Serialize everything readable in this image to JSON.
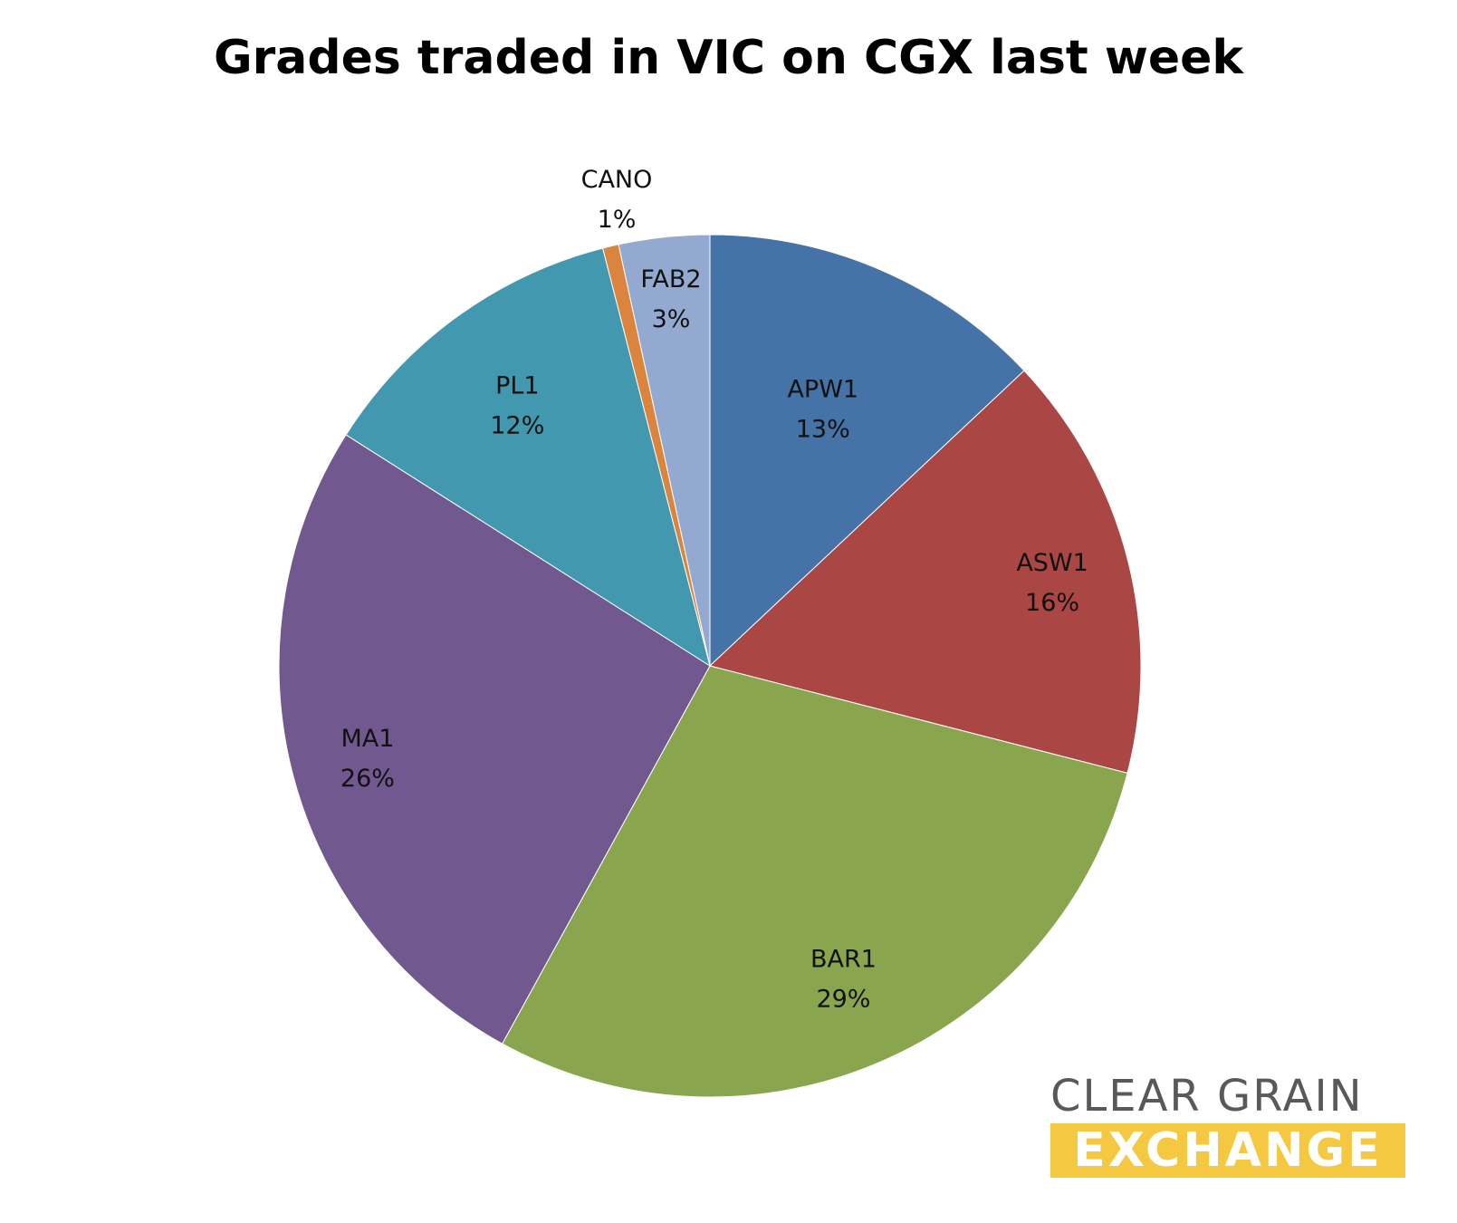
{
  "chart_data": {
    "type": "pie",
    "title": "Grades traded in VIC on CGX last week",
    "slices": [
      {
        "label": "APW1",
        "value": 13,
        "pct_label": "13%",
        "color": "#4572a7"
      },
      {
        "label": "ASW1",
        "value": 16,
        "pct_label": "16%",
        "color": "#aa4643"
      },
      {
        "label": "BAR1",
        "value": 29,
        "pct_label": "29%",
        "color": "#89a54e"
      },
      {
        "label": "MA1",
        "value": 26,
        "pct_label": "26%",
        "color": "#71588f"
      },
      {
        "label": "PL1",
        "value": 12,
        "pct_label": "12%",
        "color": "#4198af"
      },
      {
        "label": "CANO",
        "value": 0.6,
        "pct_label": "1%",
        "color": "#db843d"
      },
      {
        "label": "FAB2",
        "value": 3.4,
        "pct_label": "3%",
        "color": "#93a9d0"
      }
    ],
    "start_angle_deg": 0,
    "direction": "clockwise",
    "legend": "none"
  },
  "logo": {
    "line1": "CLEAR GRAIN",
    "line2": "EXCHANGE"
  }
}
